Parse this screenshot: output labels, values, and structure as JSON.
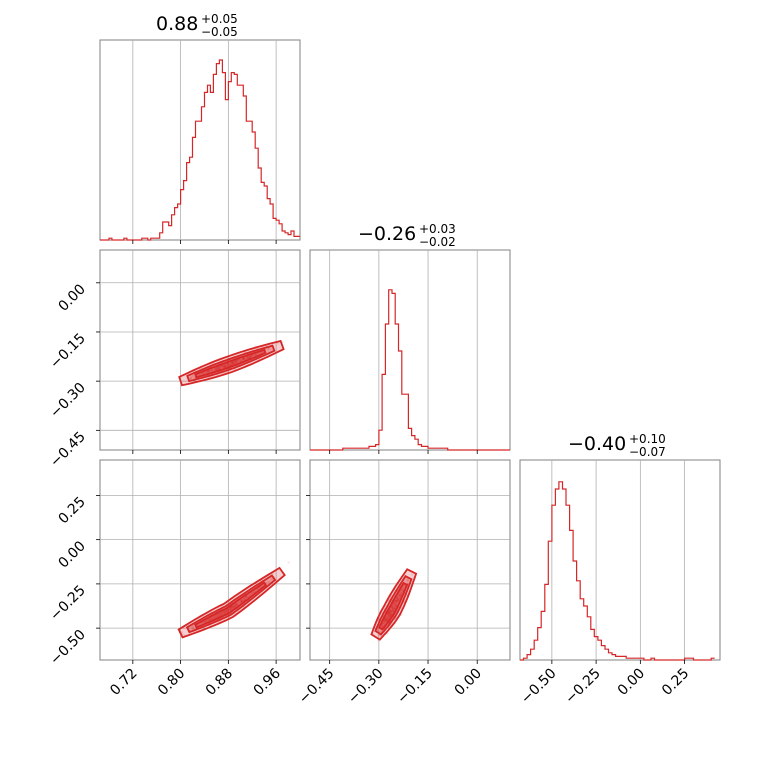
{
  "chart_data": {
    "type": "corner",
    "color": "#d62728",
    "grid": true,
    "parameters": [
      {
        "title": {
          "main": "0.88",
          "upper": "+0.05",
          "lower": "−0.05"
        },
        "median": 0.88,
        "plus": 0.05,
        "minus": 0.05,
        "range": [
          0.665,
          1.0
        ],
        "ticks": [
          0.72,
          0.8,
          0.88,
          0.96
        ],
        "tick_labels": [
          "0.72",
          "0.80",
          "0.88",
          "0.96"
        ],
        "hist_x": [
          0.665,
          0.67,
          0.675,
          0.68,
          0.685,
          0.69,
          0.695,
          0.7,
          0.705,
          0.71,
          0.715,
          0.72,
          0.725,
          0.73,
          0.735,
          0.74,
          0.745,
          0.75,
          0.755,
          0.76,
          0.765,
          0.77,
          0.775,
          0.78,
          0.785,
          0.79,
          0.795,
          0.8,
          0.805,
          0.81,
          0.815,
          0.82,
          0.825,
          0.83,
          0.835,
          0.84,
          0.845,
          0.85,
          0.855,
          0.86,
          0.865,
          0.87,
          0.875,
          0.88,
          0.885,
          0.89,
          0.895,
          0.9,
          0.905,
          0.91,
          0.915,
          0.92,
          0.925,
          0.93,
          0.935,
          0.94,
          0.945,
          0.95,
          0.955,
          0.96,
          0.965,
          0.97,
          0.975,
          0.98,
          0.985,
          0.99,
          0.995
        ],
        "hist_y": [
          0,
          0,
          0,
          0.01,
          0,
          0,
          0,
          0,
          0.01,
          0,
          0,
          0,
          0,
          0,
          0.01,
          0.01,
          0,
          0.01,
          0.01,
          0.01,
          0.04,
          0.1,
          0.1,
          0.08,
          0.14,
          0.18,
          0.2,
          0.28,
          0.33,
          0.43,
          0.46,
          0.57,
          0.66,
          0.66,
          0.74,
          0.82,
          0.86,
          0.82,
          0.92,
          0.98,
          1.0,
          0.93,
          0.78,
          0.88,
          0.93,
          0.92,
          0.86,
          0.86,
          0.8,
          0.66,
          0.66,
          0.6,
          0.51,
          0.4,
          0.32,
          0.3,
          0.23,
          0.2,
          0.12,
          0.11,
          0.09,
          0.05,
          0.04,
          0.03,
          0.05,
          0.02,
          0.02
        ]
      },
      {
        "title": {
          "main": "−0.26",
          "upper": "+0.03",
          "lower": "−0.02"
        },
        "median": -0.26,
        "plus": 0.03,
        "minus": 0.02,
        "range": [
          -0.51,
          0.1
        ],
        "ticks": [
          -0.45,
          -0.3,
          -0.15,
          0.0
        ],
        "tick_labels": [
          "−0.45",
          "−0.30",
          "−0.15",
          "0.00"
        ],
        "hist_x": [
          -0.51,
          -0.49,
          -0.47,
          -0.45,
          -0.43,
          -0.41,
          -0.39,
          -0.37,
          -0.35,
          -0.33,
          -0.31,
          -0.3,
          -0.29,
          -0.28,
          -0.27,
          -0.26,
          -0.25,
          -0.24,
          -0.23,
          -0.22,
          -0.21,
          -0.2,
          -0.19,
          -0.18,
          -0.17,
          -0.15,
          -0.13,
          -0.11,
          -0.09,
          -0.07,
          -0.05,
          -0.03,
          -0.01,
          0.01,
          0.03,
          0.05,
          0.07,
          0.09
        ],
        "hist_y": [
          0,
          0,
          0,
          0,
          0,
          0.01,
          0.01,
          0.01,
          0.01,
          0.02,
          0.03,
          0.11,
          0.42,
          0.7,
          0.89,
          0.87,
          0.7,
          0.55,
          0.31,
          0.31,
          0.12,
          0.08,
          0.06,
          0.03,
          0.02,
          0.01,
          0.01,
          0.01,
          0,
          0,
          0,
          0,
          0,
          0,
          0,
          0,
          0,
          0
        ]
      },
      {
        "title": {
          "main": "−0.40",
          "upper": "+0.10",
          "lower": "−0.07"
        },
        "median": -0.4,
        "plus": 0.1,
        "minus": 0.07,
        "range": [
          -0.68,
          0.45
        ],
        "ticks": [
          -0.5,
          -0.25,
          0.0,
          0.25
        ],
        "tick_labels": [
          "−0.50",
          "−0.25",
          "0.00",
          "0.25"
        ],
        "hist_x": [
          -0.68,
          -0.66,
          -0.64,
          -0.62,
          -0.6,
          -0.58,
          -0.56,
          -0.54,
          -0.52,
          -0.5,
          -0.48,
          -0.46,
          -0.44,
          -0.42,
          -0.4,
          -0.38,
          -0.36,
          -0.34,
          -0.32,
          -0.3,
          -0.28,
          -0.26,
          -0.24,
          -0.22,
          -0.2,
          -0.18,
          -0.16,
          -0.14,
          -0.12,
          -0.1,
          -0.08,
          -0.06,
          -0.04,
          -0.02,
          0.0,
          0.02,
          0.04,
          0.06,
          0.08,
          0.1,
          0.15,
          0.2,
          0.25,
          0.3,
          0.35,
          0.4
        ],
        "hist_y": [
          0,
          0.01,
          0.03,
          0.06,
          0.11,
          0.18,
          0.27,
          0.42,
          0.66,
          0.86,
          0.95,
          0.99,
          0.95,
          0.86,
          0.72,
          0.55,
          0.44,
          0.34,
          0.3,
          0.24,
          0.17,
          0.13,
          0.11,
          0.08,
          0.06,
          0.04,
          0.03,
          0.02,
          0.02,
          0.02,
          0.01,
          0.01,
          0.01,
          0.01,
          0.01,
          0,
          0,
          0.01,
          0,
          0,
          0,
          0,
          0.01,
          0,
          0,
          0.01
        ]
      }
    ],
    "lower_panels": [
      {
        "row": 1,
        "col": 0,
        "type": "hist2d_contour",
        "trend": [
          [
            0.8,
            -0.3
          ],
          [
            0.88,
            -0.25
          ],
          [
            0.97,
            -0.19
          ]
        ]
      },
      {
        "row": 2,
        "col": 0,
        "type": "hist2d_contour",
        "trend": [
          [
            0.8,
            -0.53
          ],
          [
            0.88,
            -0.4
          ],
          [
            0.97,
            -0.18
          ]
        ]
      },
      {
        "row": 2,
        "col": 1,
        "type": "hist2d_contour",
        "trend": [
          [
            -0.31,
            -0.55
          ],
          [
            -0.26,
            -0.4
          ],
          [
            -0.2,
            -0.18
          ]
        ]
      }
    ]
  }
}
